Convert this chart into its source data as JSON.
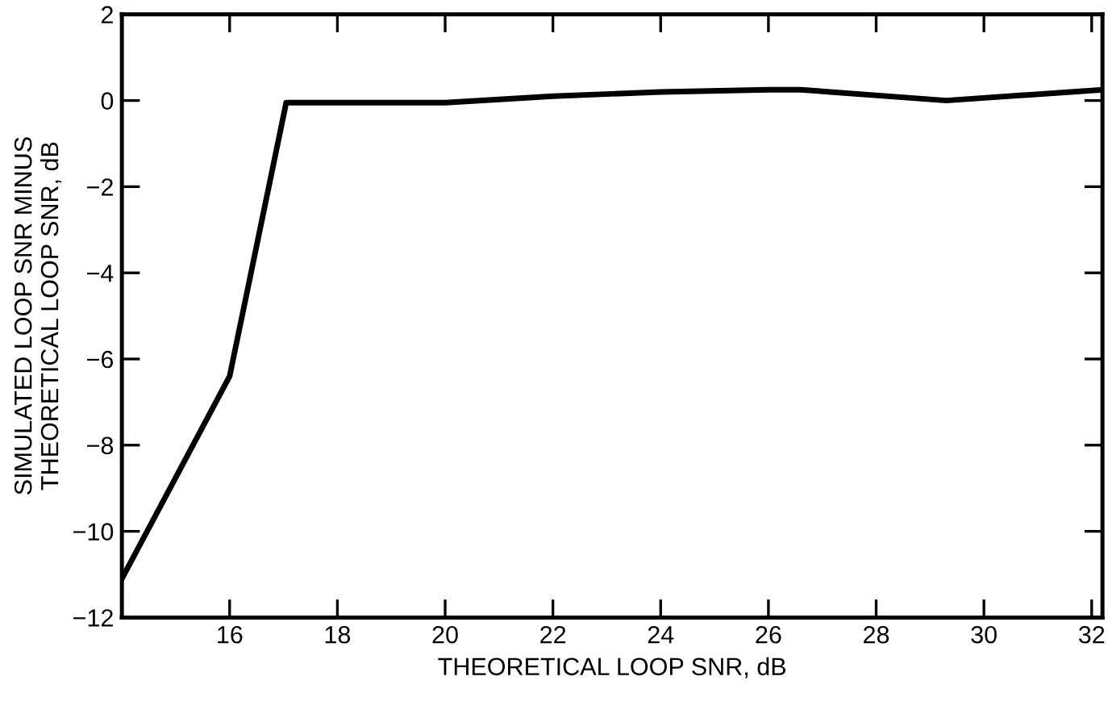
{
  "chart_data": {
    "type": "line",
    "xlabel": "THEORETICAL LOOP SNR, dB",
    "ylabel": "SIMULATED LOOP SNR MINUS\nTHEORETICAL LOOP SNR, dB",
    "x": [
      14,
      16,
      17.05,
      20,
      22,
      24,
      26,
      26.6,
      29.3,
      32.2
    ],
    "series": [
      {
        "color": "#000000",
        "values": [
          -11.1,
          -6.4,
          -0.05,
          -0.05,
          0.1,
          0.2,
          0.25,
          0.25,
          0.0,
          0.25
        ]
      }
    ],
    "xlim": [
      14,
      32.2
    ],
    "xticks": [
      16,
      18,
      20,
      22,
      24,
      26,
      28,
      30,
      32
    ],
    "ylim": [
      -12,
      2
    ],
    "yticks": [
      2,
      0,
      {
        "value": -2,
        "label": "−2"
      },
      {
        "value": -4,
        "label": "−4"
      },
      {
        "value": -6,
        "label": "−6"
      },
      {
        "value": -8,
        "label": "−8"
      },
      {
        "value": -10,
        "label": "−10"
      },
      {
        "value": -12,
        "label": "−12"
      }
    ],
    "grid": false,
    "marker": "none",
    "line_style": "solid"
  }
}
